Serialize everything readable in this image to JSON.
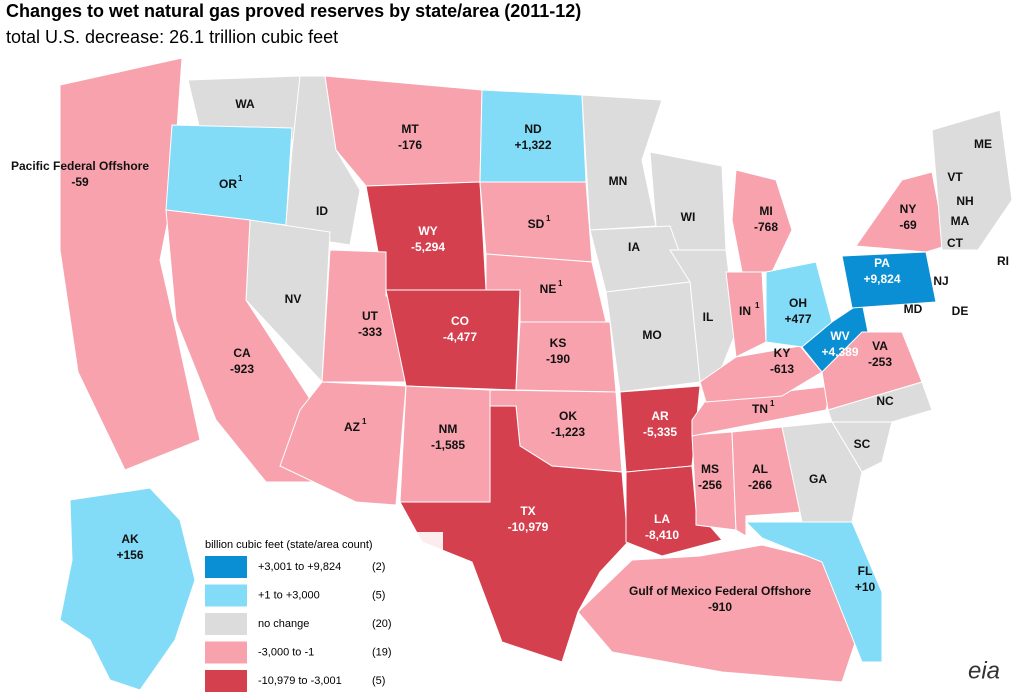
{
  "header": {
    "title": "Changes to wet natural gas proved reserves by state/area (2011-12)",
    "subtitle": "total U.S. decrease: 26.1 trillion cubic feet"
  },
  "legend": {
    "title": "billion cubic feet (state/area count)",
    "classes": [
      {
        "label": "+3,001 to +9,824",
        "count": "(2)",
        "color": "#0b8fd4"
      },
      {
        "label": "+1 to +3,000",
        "count": "(5)",
        "color": "#82dcf8"
      },
      {
        "label": "no change",
        "count": "(20)",
        "color": "#dcdcdc"
      },
      {
        "label": "-3,000 to -1",
        "count": "(19)",
        "color": "#f7a2ad"
      },
      {
        "label": "-10,979 to -3,001",
        "count": "(5)",
        "color": "#d5404f"
      }
    ]
  },
  "areas": [
    {
      "name": "Pacific Federal Offshore",
      "value": "-59",
      "class": 3
    },
    {
      "name": "WA",
      "class": 2
    },
    {
      "name": "OR",
      "note": "1",
      "class": 1
    },
    {
      "name": "ID",
      "class": 2
    },
    {
      "name": "MT",
      "value": "-176",
      "class": 3
    },
    {
      "name": "ND",
      "value": "+1,322",
      "class": 1
    },
    {
      "name": "WY",
      "value": "-5,294",
      "class": 4
    },
    {
      "name": "SD",
      "note": "1",
      "class": 3
    },
    {
      "name": "NV",
      "class": 2
    },
    {
      "name": "UT",
      "value": "-333",
      "class": 3
    },
    {
      "name": "CO",
      "value": "-4,477",
      "class": 4
    },
    {
      "name": "NE",
      "note": "1",
      "class": 3
    },
    {
      "name": "KS",
      "value": "-190",
      "class": 3
    },
    {
      "name": "CA",
      "value": "-923",
      "class": 3
    },
    {
      "name": "AZ",
      "note": "1",
      "class": 3
    },
    {
      "name": "NM",
      "value": "-1,585",
      "class": 3
    },
    {
      "name": "OK",
      "value": "-1,223",
      "class": 3
    },
    {
      "name": "TX",
      "value": "-10,979",
      "class": 4
    },
    {
      "name": "MN",
      "class": 2
    },
    {
      "name": "WI",
      "class": 2
    },
    {
      "name": "IA",
      "class": 2
    },
    {
      "name": "IL",
      "class": 2
    },
    {
      "name": "MO",
      "class": 2
    },
    {
      "name": "AR",
      "value": "-5,335",
      "class": 4
    },
    {
      "name": "LA",
      "value": "-8,410",
      "class": 4
    },
    {
      "name": "MS",
      "value": "-256",
      "class": 3
    },
    {
      "name": "AL",
      "value": "-266",
      "class": 3
    },
    {
      "name": "TN",
      "note": "1",
      "class": 3
    },
    {
      "name": "KY",
      "value": "-613",
      "class": 3
    },
    {
      "name": "IN",
      "note": "1",
      "class": 3
    },
    {
      "name": "MI",
      "value": "-768",
      "class": 3
    },
    {
      "name": "OH",
      "value": "+477",
      "class": 1
    },
    {
      "name": "WV",
      "value": "+4,389",
      "class": 0
    },
    {
      "name": "PA",
      "value": "+9,824",
      "class": 0
    },
    {
      "name": "VA",
      "value": "-253",
      "class": 3
    },
    {
      "name": "NY",
      "value": "-69",
      "class": 3
    },
    {
      "name": "NC",
      "class": 2
    },
    {
      "name": "SC",
      "class": 2
    },
    {
      "name": "GA",
      "class": 2
    },
    {
      "name": "FL",
      "value": "+10",
      "class": 1
    },
    {
      "name": "Gulf of Mexico Federal Offshore",
      "value": "-910",
      "class": 3
    },
    {
      "name": "AK",
      "value": "+156",
      "class": 1
    },
    {
      "name": "ME",
      "class": 2
    },
    {
      "name": "VT",
      "class": 2
    },
    {
      "name": "NH",
      "class": 2
    },
    {
      "name": "MA",
      "class": 2
    },
    {
      "name": "CT",
      "class": 2
    },
    {
      "name": "RI",
      "class": 2
    },
    {
      "name": "NJ",
      "class": 2
    },
    {
      "name": "MD",
      "class": 2
    },
    {
      "name": "DE",
      "class": 2
    }
  ],
  "logo": "eia"
}
